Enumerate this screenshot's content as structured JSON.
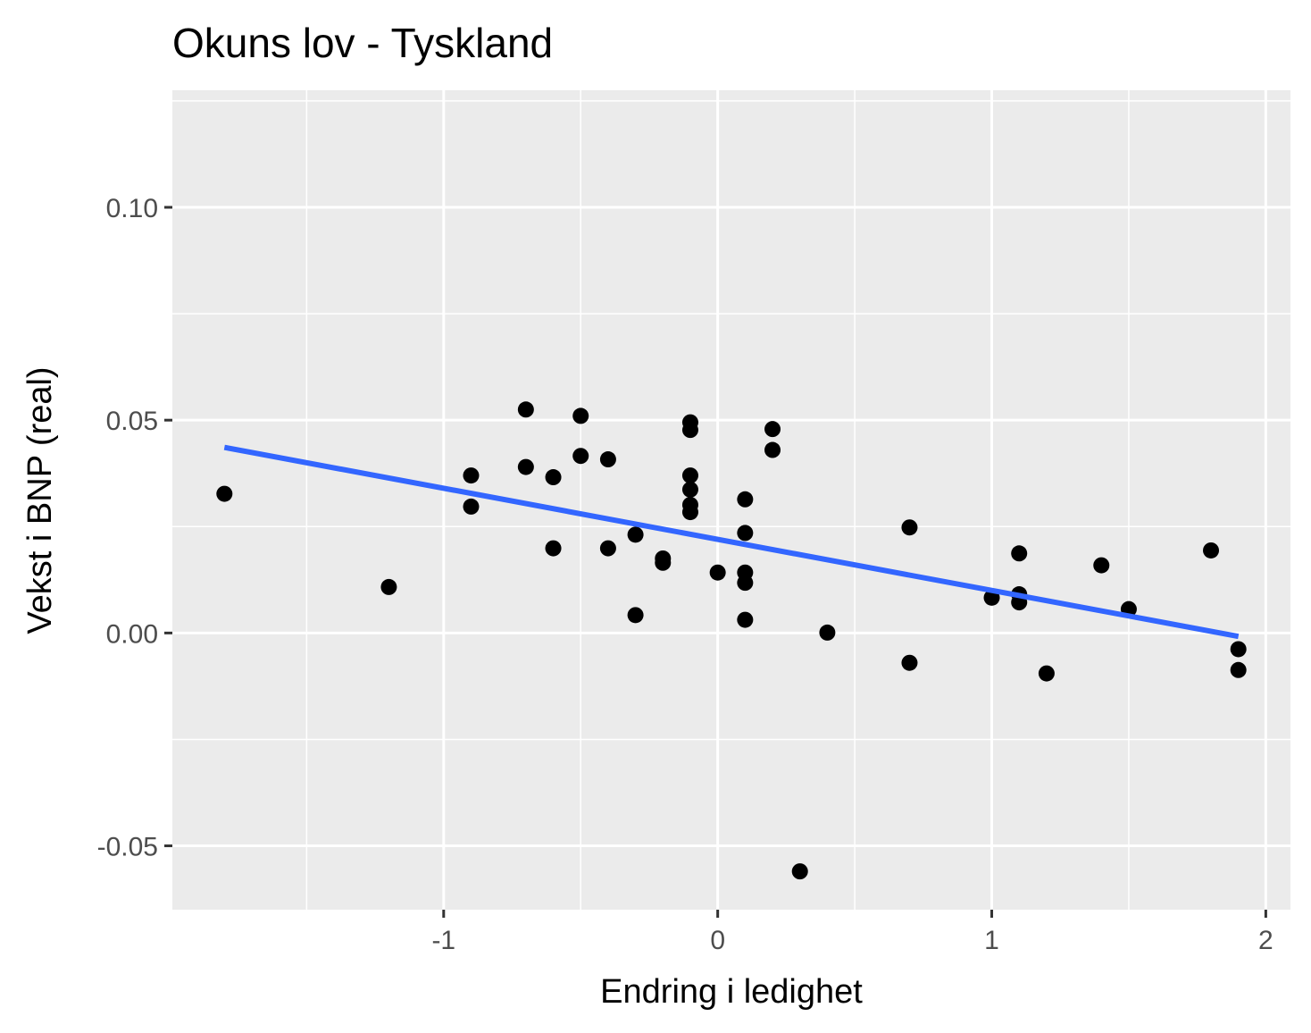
{
  "chart_data": {
    "type": "scatter",
    "title": "Okuns lov - Tyskland",
    "xlabel": "Endring i ledighet",
    "ylabel": "Vekst i BNP (real)",
    "xlim": [
      -1.99,
      2.09
    ],
    "ylim": [
      -0.065,
      0.1275
    ],
    "x_ticks": [
      -1,
      0,
      1,
      2
    ],
    "x_tick_labels": [
      "-1",
      "0",
      "1",
      "2"
    ],
    "y_ticks": [
      -0.05,
      0.0,
      0.05,
      0.1
    ],
    "y_tick_labels": [
      "-0.05",
      "0.00",
      "0.05",
      "0.10"
    ],
    "grid": true,
    "colors": {
      "panel": "#ebebeb",
      "grid": "#ffffff",
      "points": "#000000",
      "fit_line": "#3366ff"
    },
    "series": [
      {
        "points": [
          {
            "x": -1.8,
            "y": 0.0327
          },
          {
            "x": -1.2,
            "y": 0.0108
          },
          {
            "x": -0.9,
            "y": 0.037
          },
          {
            "x": -0.9,
            "y": 0.0297
          },
          {
            "x": -0.7,
            "y": 0.0525
          },
          {
            "x": -0.7,
            "y": 0.039
          },
          {
            "x": -0.6,
            "y": 0.0366
          },
          {
            "x": -0.6,
            "y": 0.0199
          },
          {
            "x": -0.5,
            "y": 0.051
          },
          {
            "x": -0.5,
            "y": 0.0416
          },
          {
            "x": -0.4,
            "y": 0.0408
          },
          {
            "x": -0.4,
            "y": 0.0199
          },
          {
            "x": -0.3,
            "y": 0.0231
          },
          {
            "x": -0.3,
            "y": 0.0042
          },
          {
            "x": -0.2,
            "y": 0.0175
          },
          {
            "x": -0.2,
            "y": 0.0165
          },
          {
            "x": -0.1,
            "y": 0.0495
          },
          {
            "x": -0.1,
            "y": 0.0477
          },
          {
            "x": -0.1,
            "y": 0.037
          },
          {
            "x": -0.1,
            "y": 0.0337
          },
          {
            "x": -0.1,
            "y": 0.0301
          },
          {
            "x": -0.1,
            "y": 0.0284
          },
          {
            "x": 0.0,
            "y": 0.0142
          },
          {
            "x": 0.1,
            "y": 0.0314
          },
          {
            "x": 0.1,
            "y": 0.0235
          },
          {
            "x": 0.1,
            "y": 0.0142
          },
          {
            "x": 0.1,
            "y": 0.0118
          },
          {
            "x": 0.1,
            "y": 0.0031
          },
          {
            "x": 0.2,
            "y": 0.0479
          },
          {
            "x": 0.2,
            "y": 0.043
          },
          {
            "x": 0.3,
            "y": -0.056
          },
          {
            "x": 0.4,
            "y": 0.0001
          },
          {
            "x": 0.7,
            "y": 0.0248
          },
          {
            "x": 0.7,
            "y": -0.007
          },
          {
            "x": 1.0,
            "y": 0.0083
          },
          {
            "x": 1.1,
            "y": 0.0187
          },
          {
            "x": 1.1,
            "y": 0.0091
          },
          {
            "x": 1.1,
            "y": 0.0072
          },
          {
            "x": 1.2,
            "y": -0.0095
          },
          {
            "x": 1.4,
            "y": 0.0159
          },
          {
            "x": 1.5,
            "y": 0.0056
          },
          {
            "x": 1.8,
            "y": 0.0194
          },
          {
            "x": 1.9,
            "y": -0.0038
          },
          {
            "x": 1.9,
            "y": -0.0087
          }
        ]
      }
    ],
    "fit_line": {
      "x": [
        -1.8,
        1.9
      ],
      "y": [
        0.0436,
        -0.0008
      ]
    }
  }
}
